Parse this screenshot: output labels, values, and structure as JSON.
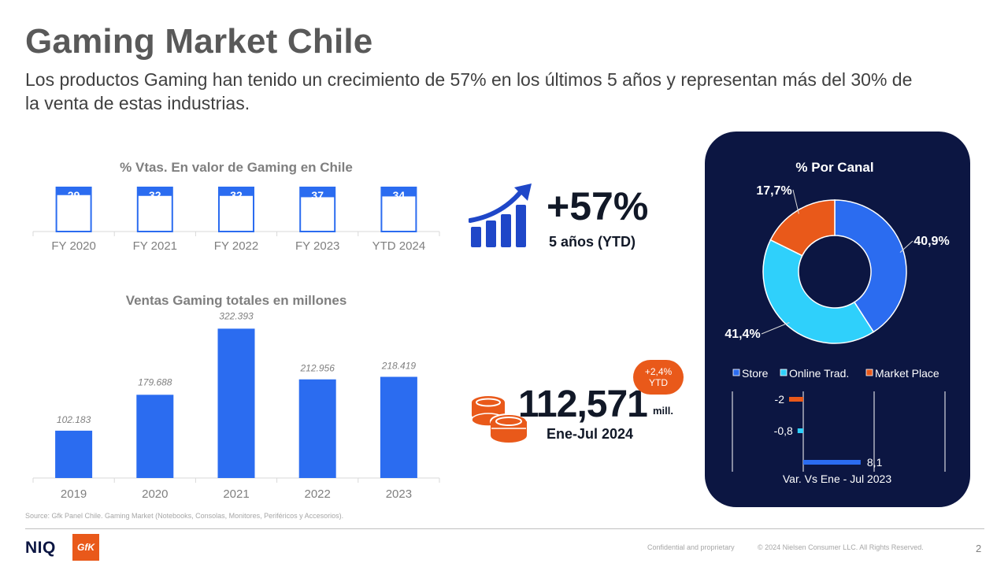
{
  "header": {
    "title": "Gaming Market Chile",
    "subtitle": "Los productos Gaming han tenido un crecimiento de 57% en los últimos 5 años y representan más del 30% de la venta de estas industrias."
  },
  "colors": {
    "blue": "#2b6cf0",
    "cyan": "#2fd0fb",
    "orange": "#e9591a",
    "navy": "#0c1642"
  },
  "chart_data": [
    {
      "type": "bar",
      "title": "% Vtas. En valor de Gaming en Chile",
      "categories": [
        "FY 2020",
        "FY 2021",
        "FY 2022",
        "FY 2023",
        "YTD 2024"
      ],
      "values": [
        29,
        32,
        32,
        37,
        34
      ],
      "ylim": [
        0,
        100
      ]
    },
    {
      "type": "bar",
      "title": "Ventas Gaming totales en millones",
      "categories": [
        "2019",
        "2020",
        "2021",
        "2022",
        "2023"
      ],
      "values": [
        102183,
        179688,
        322393,
        212956,
        218419
      ],
      "labels": [
        "102.183",
        "179.688",
        "322.393",
        "212.956",
        "218.419"
      ],
      "ylim": [
        0,
        340000
      ]
    },
    {
      "type": "pie",
      "title": "% Por Canal",
      "categories": [
        "Store",
        "Online Trad.",
        "Market Place"
      ],
      "values": [
        40.9,
        41.4,
        17.7
      ],
      "labels": [
        "40,9%",
        "41,4%",
        "17,7%"
      ],
      "legend": "bottom"
    },
    {
      "type": "bar",
      "orientation": "horizontal",
      "xlabel": "Var. Vs Ene - Jul 2023",
      "categories": [
        "Market Place",
        "Online Trad.",
        "Store"
      ],
      "values": [
        -2,
        -0.8,
        8.1
      ],
      "labels": [
        "-2",
        "-0,8",
        "8,1"
      ],
      "xlim": [
        -10,
        10
      ]
    }
  ],
  "kpis": {
    "growth_value": "+57%",
    "growth_period": "5 años (YTD)",
    "sales_value": "112,571",
    "sales_unit": "mill.",
    "sales_period": "Ene-Jul 2024",
    "badge_line1": "+2,4%",
    "badge_line2": "YTD"
  },
  "footer": {
    "source": "Source: Gfk Panel Chile. Gaming Market (Notebooks, Consolas, Monitores,  Periféricos y Accesorios).",
    "brand": "NIQ",
    "brand2": "GfK",
    "confidential": "Confidential and proprietary",
    "copyright": "© 2024 Nielsen Consumer LLC. All Rights Reserved.",
    "page": "2"
  }
}
